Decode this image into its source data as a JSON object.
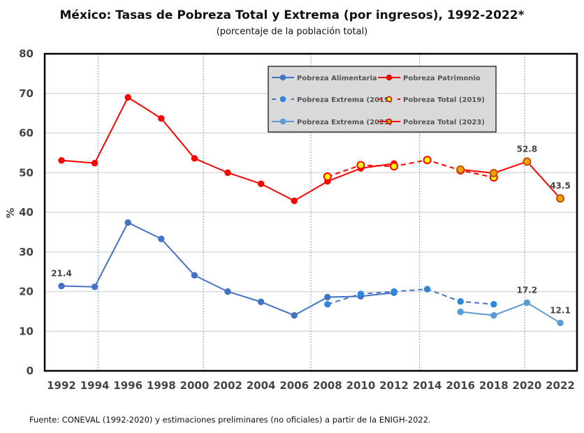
{
  "chart_data": {
    "type": "line",
    "title": "México: Tasas de Pobreza Total y Extrema (por ingresos), 1992-2022*",
    "subtitle": "(porcentaje de la población total)",
    "ylabel": "%",
    "xlabel": "",
    "ylim": [
      0,
      80
    ],
    "yticks": [
      0,
      10,
      20,
      30,
      40,
      50,
      60,
      70,
      80
    ],
    "categories": [
      "1992",
      "1994",
      "1996",
      "1998",
      "2000",
      "2002",
      "2004",
      "2006",
      "2008",
      "2010",
      "2012",
      "2014",
      "2016",
      "2018",
      "2020",
      "2022"
    ],
    "grid": "horizontal",
    "legend_position": "top-center",
    "series": [
      {
        "name": "Pobreza Alimentaria",
        "color": "#4472C4",
        "style": "solid",
        "marker_fill": "#4472C4",
        "values": [
          21.4,
          21.2,
          37.4,
          33.3,
          24.1,
          20.0,
          17.4,
          14.0,
          18.6,
          18.8,
          19.7,
          null,
          null,
          null,
          null,
          null
        ]
      },
      {
        "name": "Pobreza Patrimonio",
        "color": "#FF0000",
        "style": "solid",
        "marker_fill": "#FF0000",
        "values": [
          53.1,
          52.4,
          69.0,
          63.7,
          53.6,
          50.0,
          47.2,
          42.9,
          47.8,
          51.1,
          52.3,
          null,
          null,
          null,
          null,
          null
        ]
      },
      {
        "name": "Pobreza Extrema (2019)",
        "color": "#4472C4",
        "style": "dashed",
        "marker_fill": "#2E86DE",
        "values": [
          null,
          null,
          null,
          null,
          null,
          null,
          null,
          null,
          16.8,
          19.4,
          20.0,
          20.6,
          17.5,
          16.8,
          null,
          null
        ]
      },
      {
        "name": "Pobreza Total (2019)",
        "color": "#FF0000",
        "style": "dashed",
        "marker_fill": "#FFFF00",
        "values": [
          null,
          null,
          null,
          null,
          null,
          null,
          null,
          null,
          49.0,
          51.9,
          51.6,
          53.2,
          50.6,
          48.8,
          null,
          null
        ]
      },
      {
        "name": "Pobreza Extrema (2023)",
        "color": "#5B9BD5",
        "style": "solid",
        "marker_fill": "#5B9BD5",
        "values": [
          null,
          null,
          null,
          null,
          null,
          null,
          null,
          null,
          null,
          null,
          null,
          null,
          14.9,
          14.0,
          17.2,
          12.1
        ]
      },
      {
        "name": "Pobreza Total (2023)",
        "color": "#FF0000",
        "style": "solid",
        "marker_fill": "#F4A300",
        "values": [
          null,
          null,
          null,
          null,
          null,
          null,
          null,
          null,
          null,
          null,
          null,
          null,
          50.8,
          49.9,
          52.8,
          43.5
        ]
      }
    ],
    "annotations": [
      {
        "x": "1992",
        "y": 21.4,
        "text": "21.4"
      },
      {
        "x": "2020",
        "y": 52.8,
        "text": "52.8"
      },
      {
        "x": "2022",
        "y": 43.5,
        "text": "43.5"
      },
      {
        "x": "2020",
        "y": 17.2,
        "text": "17.2"
      },
      {
        "x": "2022",
        "y": 12.1,
        "text": "12.1"
      }
    ],
    "source": "Fuente: CONEVAL (1992-2020) y estimaciones preliminares (no oficiales) a partir de la ENIGH-2022."
  }
}
